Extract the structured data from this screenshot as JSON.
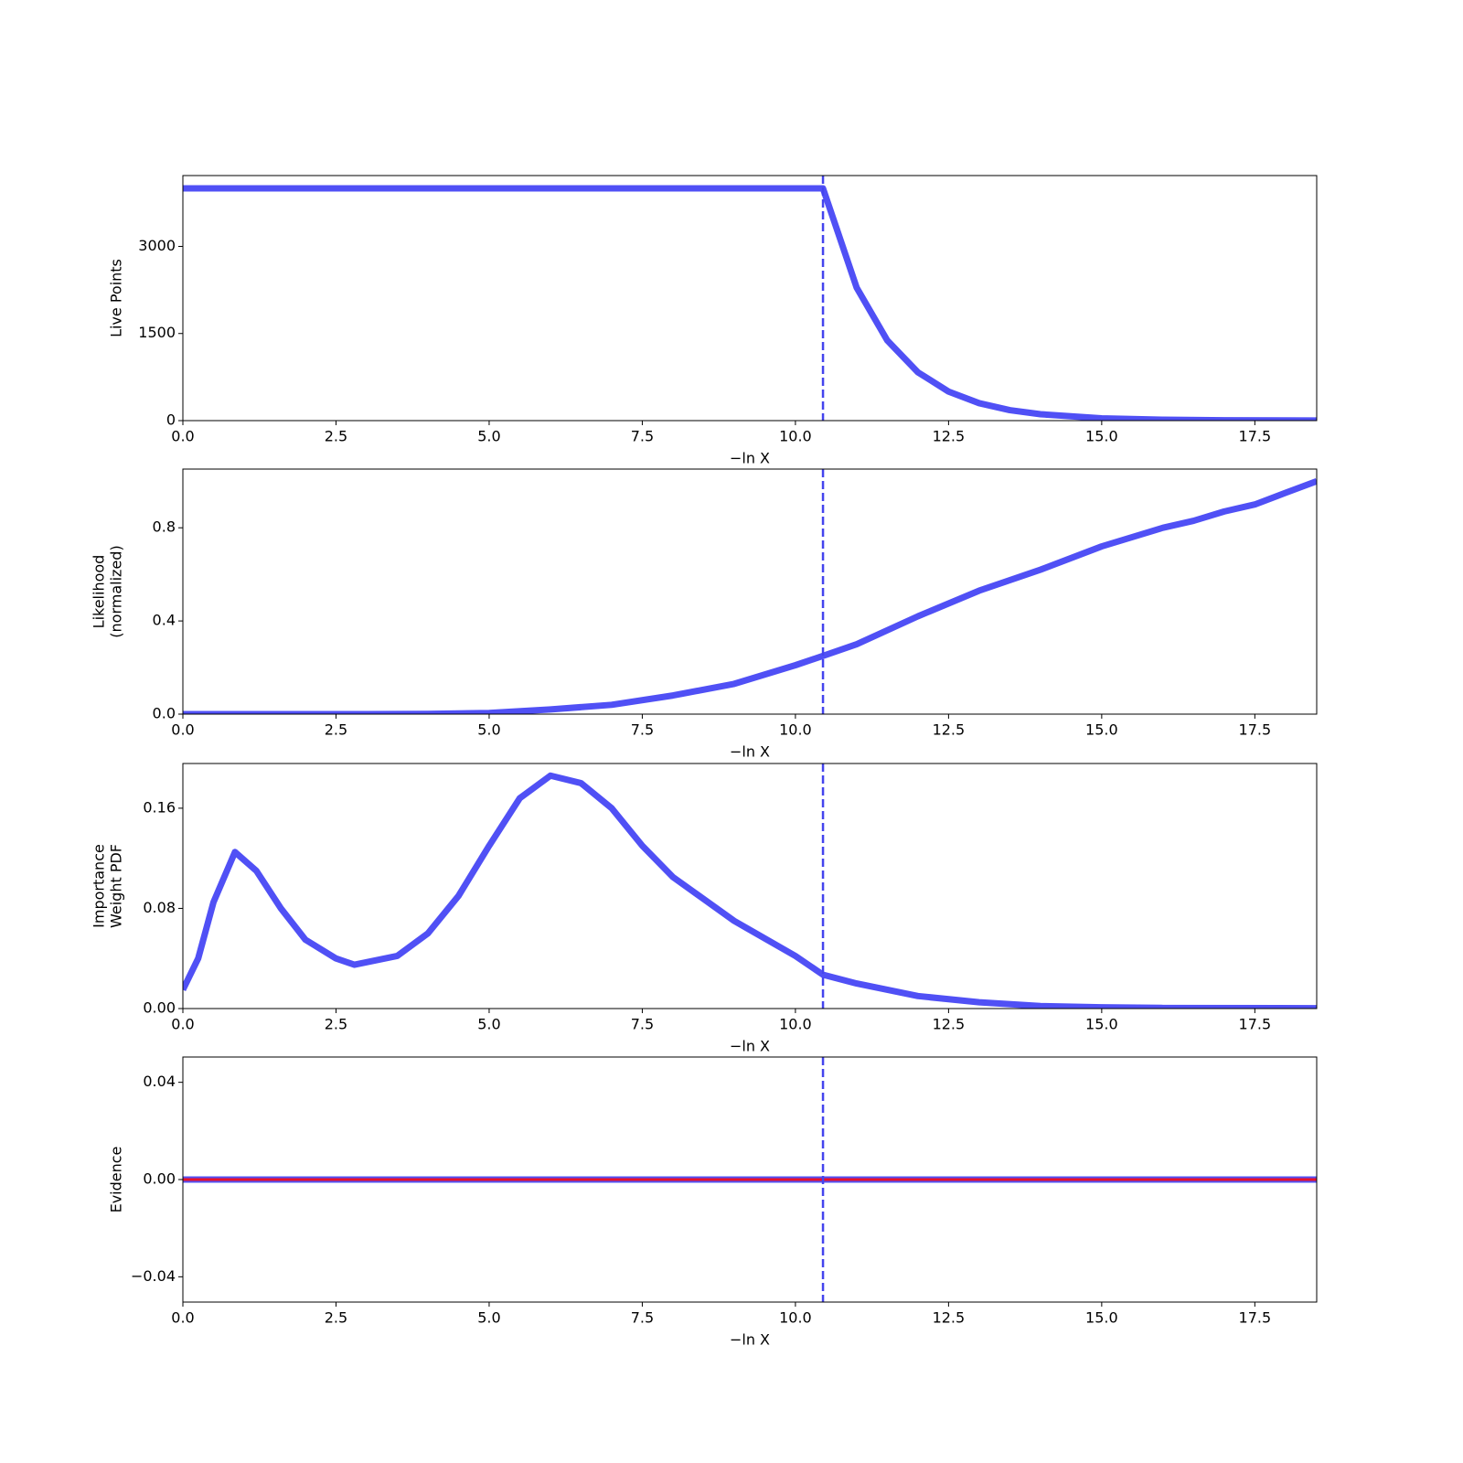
{
  "chart_data": [
    {
      "type": "line",
      "ylabel": [
        "Live Points"
      ],
      "xlabel": "−ln X",
      "x": [
        0,
        10.45,
        11,
        11.5,
        12,
        12.5,
        13,
        13.5,
        14,
        15,
        16,
        17,
        18.51
      ],
      "series": [
        {
          "color": "#5050f5",
          "values": [
            4000,
            4000,
            2290,
            1380,
            832,
            500,
            300,
            180,
            110,
            40,
            15,
            5,
            2
          ]
        }
      ],
      "xlim": [
        0,
        18.51
      ],
      "ylim": [
        0,
        4220
      ],
      "xticks": [
        {
          "value": 0,
          "label": "0.0"
        },
        2.5,
        {
          "value": 5,
          "label": "5.0"
        },
        7.5,
        {
          "value": 10,
          "label": "10.0"
        },
        12.5,
        {
          "value": 15,
          "label": "15.0"
        },
        17.5
      ],
      "yticks": [
        0,
        1500,
        3000
      ],
      "vline": 10.45,
      "vline_color": "#4444ee"
    },
    {
      "type": "line",
      "ylabel": [
        "Likelihood",
        "(normalized)"
      ],
      "xlabel": "−ln X",
      "x": [
        0,
        3,
        4,
        5,
        6,
        7,
        8,
        9,
        10,
        10.45,
        11,
        12,
        13,
        14,
        15,
        16,
        16.5,
        17,
        17.5,
        18,
        18.51
      ],
      "series": [
        {
          "color": "#5050f5",
          "values": [
            0,
            0,
            0.001,
            0.005,
            0.02,
            0.04,
            0.08,
            0.13,
            0.21,
            0.25,
            0.3,
            0.42,
            0.53,
            0.62,
            0.72,
            0.8,
            0.83,
            0.87,
            0.9,
            0.95,
            1.0
          ]
        }
      ],
      "xlim": [
        0,
        18.51
      ],
      "ylim": [
        0,
        1.052
      ],
      "xticks": [
        {
          "value": 0,
          "label": "0.0"
        },
        2.5,
        {
          "value": 5,
          "label": "5.0"
        },
        7.5,
        {
          "value": 10,
          "label": "10.0"
        },
        12.5,
        {
          "value": 15,
          "label": "15.0"
        },
        17.5
      ],
      "yticks": [
        {
          "value": 0,
          "label": "0.0"
        },
        0.4,
        0.8
      ],
      "vline": 10.45,
      "vline_color": "#4444ee"
    },
    {
      "type": "line",
      "ylabel": [
        "Importance",
        "Weight PDF"
      ],
      "xlabel": "−ln X",
      "x": [
        0,
        0.25,
        0.5,
        0.85,
        1.2,
        1.6,
        2,
        2.5,
        2.8,
        3.5,
        4,
        4.5,
        5,
        5.5,
        6,
        6.5,
        7,
        7.5,
        8,
        9,
        10,
        10.45,
        11,
        12,
        13,
        14,
        15,
        16,
        18.51
      ],
      "series": [
        {
          "color": "#5050f5",
          "values": [
            0.015,
            0.04,
            0.085,
            0.125,
            0.11,
            0.08,
            0.055,
            0.04,
            0.035,
            0.042,
            0.06,
            0.09,
            0.13,
            0.168,
            0.186,
            0.18,
            0.16,
            0.13,
            0.105,
            0.07,
            0.042,
            0.027,
            0.02,
            0.01,
            0.005,
            0.002,
            0.001,
            0.0005,
            0.0003
          ]
        }
      ],
      "xlim": [
        0,
        18.51
      ],
      "ylim": [
        0,
        0.1957
      ],
      "xticks": [
        {
          "value": 0,
          "label": "0.0"
        },
        2.5,
        {
          "value": 5,
          "label": "5.0"
        },
        7.5,
        {
          "value": 10,
          "label": "10.0"
        },
        12.5,
        {
          "value": 15,
          "label": "15.0"
        },
        17.5
      ],
      "yticks": [
        {
          "value": 0,
          "label": "0.00"
        },
        0.08,
        0.16
      ],
      "vline": 10.45,
      "vline_color": "#4444ee"
    },
    {
      "type": "line",
      "ylabel": [
        "Evidence"
      ],
      "xlabel": "−ln X",
      "x": [
        0,
        18.51
      ],
      "series": [
        {
          "color": "#5050f5",
          "values": [
            0,
            0
          ]
        },
        {
          "color": "#e8102a",
          "values": [
            0,
            0
          ]
        }
      ],
      "xlim": [
        0,
        18.51
      ],
      "ylim": [
        -0.0504,
        0.0504
      ],
      "xticks": [
        {
          "value": 0,
          "label": "0.0"
        },
        2.5,
        {
          "value": 5,
          "label": "5.0"
        },
        7.5,
        {
          "value": 10,
          "label": "10.0"
        },
        12.5,
        {
          "value": 15,
          "label": "15.0"
        },
        17.5
      ],
      "yticks": [
        {
          "value": -0.04,
          "label": "−0.04"
        },
        {
          "value": 0,
          "label": "0.00"
        },
        0.04
      ],
      "vline": 10.45,
      "vline_color": "#4444ee"
    }
  ]
}
